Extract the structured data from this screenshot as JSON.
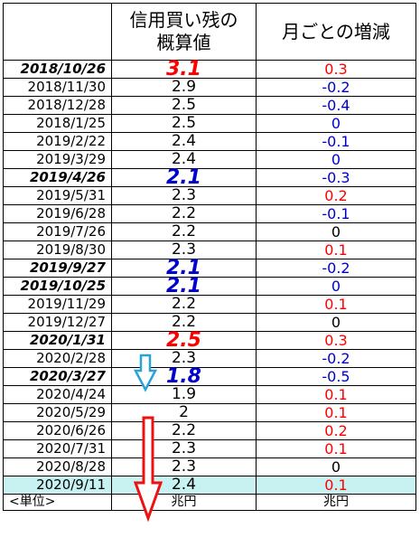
{
  "header": {
    "col_value_line1": "信用買い残の",
    "col_value_line2": "概算値",
    "col_change": "月ごとの増減"
  },
  "rows": [
    {
      "date": "2018/10/26",
      "value": "3.1",
      "change": "0.3",
      "highlight": true,
      "value_color": "#ff0000",
      "change_color": "#ff0000"
    },
    {
      "date": "2018/11/30",
      "value": "2.9",
      "change": "-0.2",
      "highlight": false,
      "value_color": "#000000",
      "change_color": "#0000cc"
    },
    {
      "date": "2018/12/28",
      "value": "2.5",
      "change": "-0.4",
      "highlight": false,
      "value_color": "#000000",
      "change_color": "#0000cc"
    },
    {
      "date": "2018/1/25",
      "value": "2.5",
      "change": "0",
      "highlight": false,
      "value_color": "#000000",
      "change_color": "#0000cc"
    },
    {
      "date": "2019/2/22",
      "value": "2.4",
      "change": "-0.1",
      "highlight": false,
      "value_color": "#000000",
      "change_color": "#0000cc"
    },
    {
      "date": "2019/3/29",
      "value": "2.4",
      "change": "0",
      "highlight": false,
      "value_color": "#000000",
      "change_color": "#0000cc"
    },
    {
      "date": "2019/4/26",
      "value": "2.1",
      "change": "-0.3",
      "highlight": true,
      "value_color": "#0000cc",
      "change_color": "#0000cc"
    },
    {
      "date": "2019/5/31",
      "value": "2.3",
      "change": "0.2",
      "highlight": false,
      "value_color": "#000000",
      "change_color": "#ff0000"
    },
    {
      "date": "2019/6/28",
      "value": "2.2",
      "change": "-0.1",
      "highlight": false,
      "value_color": "#000000",
      "change_color": "#0000cc"
    },
    {
      "date": "2019/7/26",
      "value": "2.2",
      "change": "0",
      "highlight": false,
      "value_color": "#000000",
      "change_color": "#000000"
    },
    {
      "date": "2019/8/30",
      "value": "2.3",
      "change": "0.1",
      "highlight": false,
      "value_color": "#000000",
      "change_color": "#ff0000"
    },
    {
      "date": "2019/9/27",
      "value": "2.1",
      "change": "-0.2",
      "highlight": true,
      "value_color": "#0000cc",
      "change_color": "#0000cc"
    },
    {
      "date": "2019/10/25",
      "value": "2.1",
      "change": "0",
      "highlight": true,
      "value_color": "#0000cc",
      "change_color": "#0000cc"
    },
    {
      "date": "2019/11/29",
      "value": "2.2",
      "change": "0.1",
      "highlight": false,
      "value_color": "#000000",
      "change_color": "#ff0000"
    },
    {
      "date": "2019/12/27",
      "value": "2.2",
      "change": "0",
      "highlight": false,
      "value_color": "#000000",
      "change_color": "#000000"
    },
    {
      "date": "2020/1/31",
      "value": "2.5",
      "change": "0.3",
      "highlight": true,
      "value_color": "#ff0000",
      "change_color": "#ff0000"
    },
    {
      "date": "2020/2/28",
      "value": "2.3",
      "change": "-0.2",
      "highlight": false,
      "value_color": "#000000",
      "change_color": "#0000cc"
    },
    {
      "date": "2020/3/27",
      "value": "1.8",
      "change": "-0.5",
      "highlight": true,
      "value_color": "#0000cc",
      "change_color": "#0000cc"
    },
    {
      "date": "2020/4/24",
      "value": "1.9",
      "change": "0.1",
      "highlight": false,
      "value_color": "#000000",
      "change_color": "#ff0000"
    },
    {
      "date": "2020/5/29",
      "value": "2",
      "change": "0.1",
      "highlight": false,
      "value_color": "#000000",
      "change_color": "#ff0000"
    },
    {
      "date": "2020/6/26",
      "value": "2.2",
      "change": "0.2",
      "highlight": false,
      "value_color": "#000000",
      "change_color": "#ff0000"
    },
    {
      "date": "2020/7/31",
      "value": "2.3",
      "change": "0.1",
      "highlight": false,
      "value_color": "#000000",
      "change_color": "#ff0000"
    },
    {
      "date": "2020/8/28",
      "value": "2.3",
      "change": "0",
      "highlight": false,
      "value_color": "#000000",
      "change_color": "#000000"
    },
    {
      "date": "2020/9/11",
      "value": "2.4",
      "change": "0.1",
      "highlight": false,
      "value_color": "#000000",
      "change_color": "#ff0000"
    }
  ],
  "units": {
    "label": "<単位>",
    "value_unit": "兆円",
    "change_unit": "兆円"
  },
  "annotations": {
    "small_arrow_color": "#29a3d6",
    "large_arrow_color": "#ee1111"
  },
  "colors": {
    "increase": "#ff0000",
    "decrease": "#0000cc",
    "highlight_row_bg": "#c8f2f2"
  }
}
